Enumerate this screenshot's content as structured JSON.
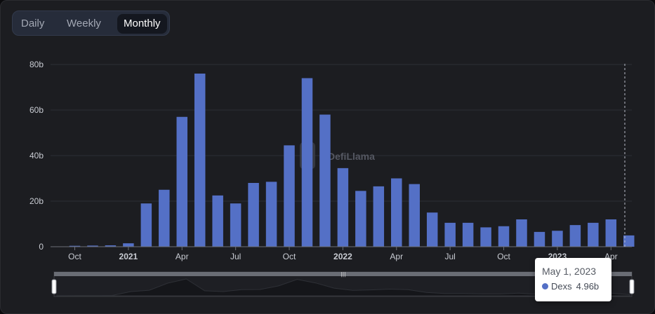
{
  "tabs": [
    {
      "label": "Daily",
      "active": false
    },
    {
      "label": "Weekly",
      "active": false
    },
    {
      "label": "Monthly",
      "active": true
    }
  ],
  "watermark": "DefiLlama",
  "tooltip": {
    "date": "May 1, 2023",
    "series": "Dexs",
    "value": "4.96b"
  },
  "colors": {
    "bar": "#5470c6",
    "background": "#1c1d21"
  },
  "chart_data": {
    "type": "bar",
    "series": [
      {
        "name": "Dexs",
        "values": [
          0.4,
          0.5,
          0.6,
          1.5,
          19,
          25,
          57,
          76,
          22.5,
          19,
          28,
          28.5,
          44.5,
          74,
          58,
          34.5,
          24.5,
          26.5,
          30,
          27.5,
          15,
          10.5,
          10.5,
          8.5,
          9,
          12,
          6.5,
          7,
          9.5,
          10.5,
          12,
          4.96
        ]
      }
    ],
    "categories": [
      "2020-10",
      "2020-11",
      "2020-12",
      "2021-01",
      "2021-02",
      "2021-03",
      "2021-04",
      "2021-05",
      "2021-06",
      "2021-07",
      "2021-08",
      "2021-09",
      "2021-10",
      "2021-11",
      "2021-12",
      "2022-01",
      "2022-02",
      "2022-03",
      "2022-04",
      "2022-05",
      "2022-06",
      "2022-07",
      "2022-08",
      "2022-09",
      "2022-10",
      "2022-11",
      "2022-12",
      "2023-01",
      "2023-02",
      "2023-03",
      "2023-04",
      "2023-05"
    ],
    "x_ticks": [
      {
        "label": "Oct",
        "bold": false,
        "index": 0
      },
      {
        "label": "2021",
        "bold": true,
        "index": 3
      },
      {
        "label": "Apr",
        "bold": false,
        "index": 6
      },
      {
        "label": "Jul",
        "bold": false,
        "index": 9
      },
      {
        "label": "Oct",
        "bold": false,
        "index": 12
      },
      {
        "label": "2022",
        "bold": true,
        "index": 15
      },
      {
        "label": "Apr",
        "bold": false,
        "index": 18
      },
      {
        "label": "Jul",
        "bold": false,
        "index": 21
      },
      {
        "label": "Oct",
        "bold": false,
        "index": 24
      },
      {
        "label": "2023",
        "bold": true,
        "index": 27
      },
      {
        "label": "Apr",
        "bold": false,
        "index": 30
      }
    ],
    "y_ticks": [
      {
        "label": "0",
        "value": 0
      },
      {
        "label": "20b",
        "value": 20
      },
      {
        "label": "40b",
        "value": 40
      },
      {
        "label": "60b",
        "value": 60
      },
      {
        "label": "80b",
        "value": 80
      }
    ],
    "ylim": [
      0,
      80
    ],
    "grid": true,
    "highlighted_index": 31
  }
}
